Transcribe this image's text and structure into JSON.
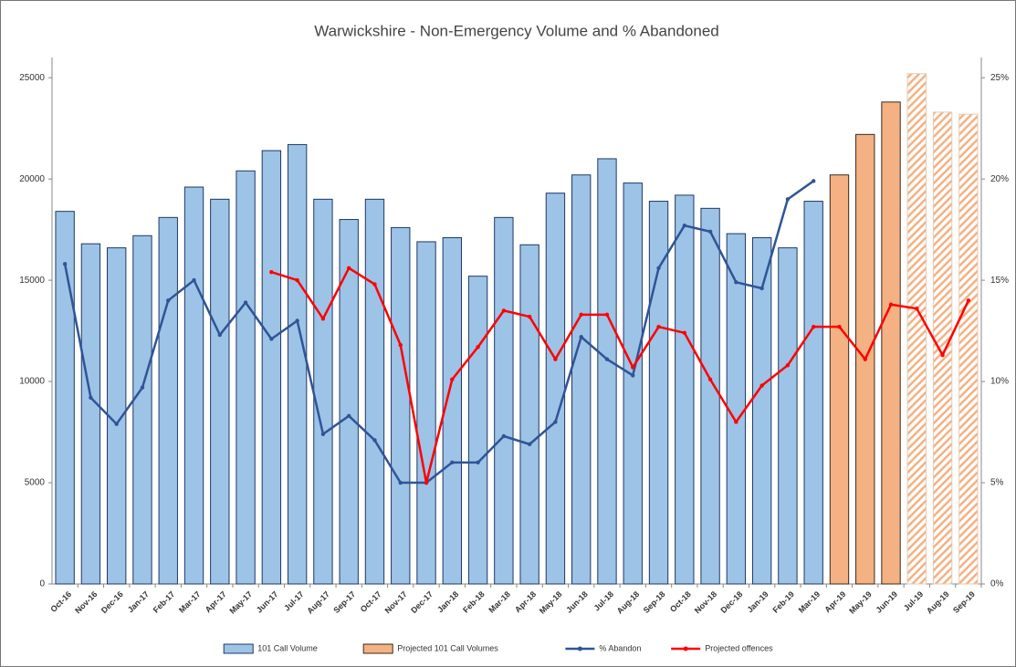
{
  "chart_data": {
    "type": "combo",
    "title": "Warwickshire - Non-Emergency Volume and % Abandoned",
    "categories": [
      "Oct-16",
      "Nov-16",
      "Dec-16",
      "Jan-17",
      "Feb-17",
      "Mar-17",
      "Apr-17",
      "May-17",
      "Jun-17",
      "Jul-17",
      "Aug-17",
      "Sep-17",
      "Oct-17",
      "Nov-17",
      "Dec-17",
      "Jan-18",
      "Feb-18",
      "Mar-18",
      "Apr-18",
      "May-18",
      "Jun-18",
      "Jul-18",
      "Aug-18",
      "Sep-18",
      "Oct-18",
      "Nov-18",
      "Dec-18",
      "Jan-19",
      "Feb-19",
      "Mar-19",
      "Apr-19",
      "May-19",
      "Jun-19",
      "Jul-19",
      "Aug-19",
      "Sep-19"
    ],
    "series": [
      {
        "name": "101 Call Volume",
        "type": "bar",
        "color": "#9dc3e6",
        "edge": "#1f3864",
        "values": [
          18400,
          16800,
          16600,
          17200,
          18100,
          19600,
          19000,
          20400,
          21400,
          21700,
          19000,
          18000,
          19000,
          17600,
          16900,
          17100,
          15200,
          18100,
          16750,
          19300,
          20200,
          21000,
          19800,
          18900,
          19200,
          18550,
          17300,
          17100,
          16600,
          18900,
          null,
          null,
          null,
          null,
          null,
          null
        ]
      },
      {
        "name": "Projected 101 Call Volumes",
        "type": "bar",
        "color": "#f4b183",
        "edge": "#3a2a1a",
        "hatch": [
          false,
          false,
          false,
          false,
          false,
          false,
          false,
          false,
          false,
          false,
          false,
          false,
          false,
          false,
          false,
          false,
          false,
          false,
          false,
          false,
          false,
          false,
          false,
          false,
          false,
          false,
          false,
          false,
          false,
          false,
          false,
          false,
          false,
          true,
          true,
          true
        ],
        "values": [
          null,
          null,
          null,
          null,
          null,
          null,
          null,
          null,
          null,
          null,
          null,
          null,
          null,
          null,
          null,
          null,
          null,
          null,
          null,
          null,
          null,
          null,
          null,
          null,
          null,
          null,
          null,
          null,
          null,
          null,
          20200,
          22200,
          23800,
          25200,
          23300,
          23200
        ]
      },
      {
        "name": "% Abandon",
        "type": "line",
        "axis": "y2",
        "color": "#2f5597",
        "values": [
          15.8,
          9.2,
          7.9,
          9.7,
          14.0,
          15.0,
          12.3,
          13.9,
          12.1,
          13.0,
          7.4,
          8.3,
          7.1,
          5.0,
          5.0,
          6.0,
          6.0,
          7.3,
          6.9,
          8.0,
          12.2,
          11.1,
          10.3,
          15.6,
          17.7,
          17.4,
          14.9,
          14.6,
          19.0,
          19.9,
          null,
          null,
          null,
          null,
          null,
          null
        ]
      },
      {
        "name": "Projected offences",
        "type": "line",
        "axis": "y2",
        "color": "#ff0000",
        "values": [
          null,
          null,
          null,
          null,
          null,
          null,
          null,
          null,
          15.4,
          15.0,
          13.1,
          15.6,
          14.8,
          11.8,
          5.0,
          10.1,
          11.7,
          13.5,
          13.2,
          11.1,
          13.3,
          13.3,
          10.7,
          12.7,
          12.4,
          10.1,
          8.0,
          9.8,
          10.8,
          12.7,
          12.7,
          11.1,
          13.8,
          13.6,
          11.3,
          14.0
        ]
      }
    ],
    "ylim": [
      0,
      26000
    ],
    "yticks": [
      0,
      5000,
      10000,
      15000,
      20000,
      25000
    ],
    "y2lim": [
      0,
      26
    ],
    "y2ticks": [
      {
        "value": 0,
        "label": "0%"
      },
      {
        "value": 5,
        "label": "5%"
      },
      {
        "value": 10,
        "label": "10%"
      },
      {
        "value": 15,
        "label": "15%"
      },
      {
        "value": 20,
        "label": "20%"
      },
      {
        "value": 25,
        "label": "25%"
      }
    ],
    "legend": "bottom"
  }
}
